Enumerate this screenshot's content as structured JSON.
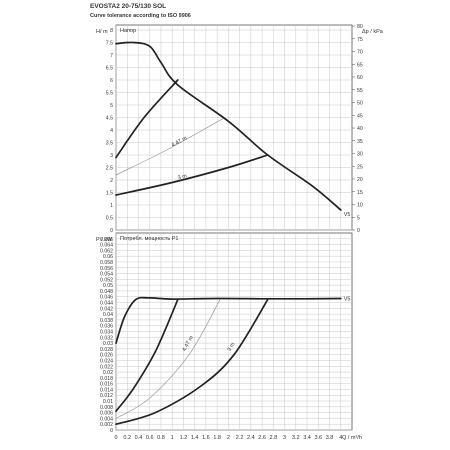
{
  "header": {
    "title": "EVOSTA2 20-75/130 SOL",
    "subtitle": "Curve tolerance according to ISO 9906"
  },
  "chart_data": [
    {
      "type": "line",
      "panel_label": "Напор",
      "ylabel_left": "H/ m",
      "ylabel_right": "Δp / kPa",
      "xlim": [
        0,
        4.2
      ],
      "ylim": [
        0,
        8.2
      ],
      "y2lim": [
        0,
        80.4
      ],
      "xticks": [
        "0",
        "0.2",
        "0.4",
        "0.6",
        "0.8",
        "1",
        "1.2",
        "1.4",
        "1.6",
        "1.8",
        "2",
        "2.2",
        "2.4",
        "2.6",
        "2.8",
        "3",
        "3.2",
        "3.4",
        "3.6",
        "3.8",
        "4"
      ],
      "yticks": [
        "0",
        "0.5",
        "1",
        "1.5",
        "2",
        "2.5",
        "3",
        "3.5",
        "4",
        "4.5",
        "5",
        "5.5",
        "6",
        "6.5",
        "7",
        "7.5",
        "8"
      ],
      "y2ticks": [
        "0",
        "5",
        "10",
        "15",
        "20",
        "25",
        "30",
        "35",
        "40",
        "45",
        "50",
        "55",
        "60",
        "65",
        "70",
        "75",
        "80"
      ],
      "grid": true,
      "series": [
        {
          "name": "V5",
          "style": "bold",
          "x": [
            0,
            0.3,
            0.6,
            0.8,
            1.1,
            2.0,
            2.7,
            3.5,
            4.0
          ],
          "y": [
            7.45,
            7.5,
            7.35,
            6.7,
            5.8,
            4.35,
            3.0,
            1.75,
            0.8
          ]
        },
        {
          "name": "",
          "style": "bold",
          "x": [
            0,
            0.5,
            1.1
          ],
          "y": [
            2.9,
            4.5,
            6.0
          ]
        },
        {
          "name": "4.47 m",
          "style": "thin",
          "x": [
            0,
            0.9,
            1.9
          ],
          "y": [
            2.2,
            3.2,
            4.45
          ]
        },
        {
          "name": "3 m",
          "style": "bold",
          "x": [
            0,
            1.0,
            2.0,
            2.7
          ],
          "y": [
            1.4,
            1.9,
            2.5,
            3.0
          ]
        }
      ]
    },
    {
      "type": "line",
      "panel_label": "Потребл. мощность P1",
      "ylabel_left": "P / kW",
      "xlabel": "Q / m³/h",
      "xlim": [
        0,
        4.2
      ],
      "ylim": [
        0,
        0.068
      ],
      "xticks": [
        "0",
        "0.2",
        "0.4",
        "0.6",
        "0.8",
        "1",
        "1.2",
        "1.4",
        "1.6",
        "1.8",
        "2",
        "2.2",
        "2.4",
        "2.6",
        "2.8",
        "3",
        "3.2",
        "3.4",
        "3.6",
        "3.8",
        "4"
      ],
      "yticks": [
        "0",
        "0.002",
        "0.004",
        "0.006",
        "0.008",
        "0.01",
        "0.012",
        "0.014",
        "0.016",
        "0.018",
        "0.02",
        "0.022",
        "0.024",
        "0.026",
        "0.028",
        "0.03",
        "0.032",
        "0.034",
        "0.036",
        "0.038",
        "0.04",
        "0.042",
        "0.044",
        "0.046",
        "0.048",
        "0.05",
        "0.052",
        "0.054",
        "0.056",
        "0.058",
        "0.06",
        "0.062",
        "0.064",
        "0.066"
      ],
      "grid": true,
      "series": [
        {
          "name": "V5",
          "style": "bold",
          "x": [
            0,
            0.15,
            0.35,
            0.6,
            1.0,
            1.8,
            2.6,
            3.4,
            4.0
          ],
          "y": [
            0.03,
            0.039,
            0.045,
            0.0456,
            0.0452,
            0.0454,
            0.0453,
            0.0453,
            0.0454
          ]
        },
        {
          "name": "",
          "style": "bold",
          "x": [
            0,
            0.3,
            0.7,
            1.1
          ],
          "y": [
            0.0065,
            0.014,
            0.027,
            0.045
          ]
        },
        {
          "name": "4.47 m",
          "style": "thin",
          "x": [
            0,
            0.6,
            1.3,
            1.85
          ],
          "y": [
            0.004,
            0.011,
            0.026,
            0.045
          ]
        },
        {
          "name": "3 m",
          "style": "bold",
          "x": [
            0,
            0.7,
            1.5,
            2.1,
            2.7
          ],
          "y": [
            0.002,
            0.006,
            0.015,
            0.026,
            0.045
          ]
        }
      ]
    }
  ]
}
